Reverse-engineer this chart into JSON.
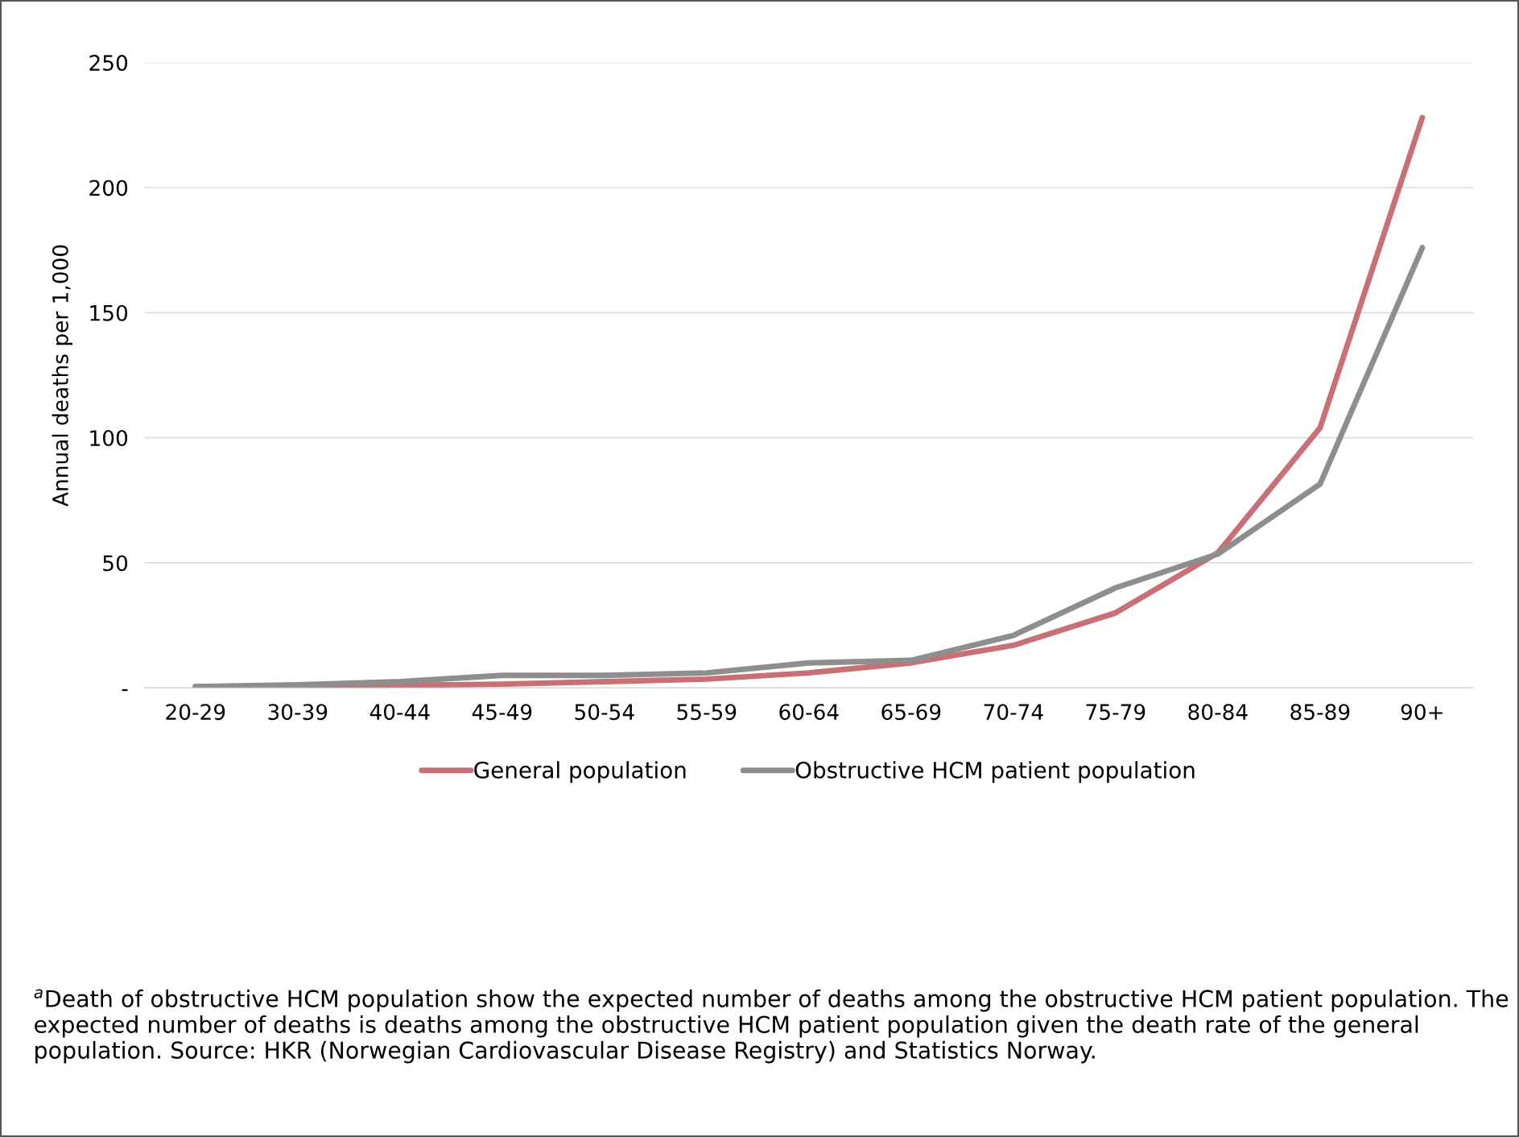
{
  "chart_data": {
    "type": "line",
    "ylabel": "Annual deaths per 1,000",
    "categories": [
      "20-29",
      "30-39",
      "40-44",
      "45-49",
      "50-54",
      "55-59",
      "60-64",
      "65-69",
      "70-74",
      "75-79",
      "80-84",
      "85-89",
      "90+"
    ],
    "series": [
      {
        "name": "General population",
        "color": "#c96f76",
        "values": [
          0.5,
          0.8,
          1,
          1.5,
          2.5,
          3.5,
          6,
          10,
          17,
          30,
          54,
          104,
          228
        ]
      },
      {
        "name": "Obstructive HCM patient population",
        "color": "#8e8e8e",
        "values": [
          0.5,
          1.2,
          2.5,
          5,
          5,
          6,
          10,
          11,
          21,
          40,
          53.5,
          81.5,
          176
        ]
      }
    ],
    "ylim": [
      0,
      250
    ],
    "yticks": [
      {
        "value": 0,
        "label": "-"
      },
      50,
      100,
      150,
      200,
      250
    ],
    "grid": "y",
    "legend": "bottom",
    "marker": "none",
    "line_style": "solid",
    "annotations": [
      "$^{a}$Death of obstructive HCM population show the expected number of deaths among the obstructive HCM patient population. The expected number of deaths is deaths among the obstructive HCM patient population given the death rate of the general population. Source: HKR (Norwegian Cardiovascular Disease Registry) and Statistics Norway."
    ]
  }
}
